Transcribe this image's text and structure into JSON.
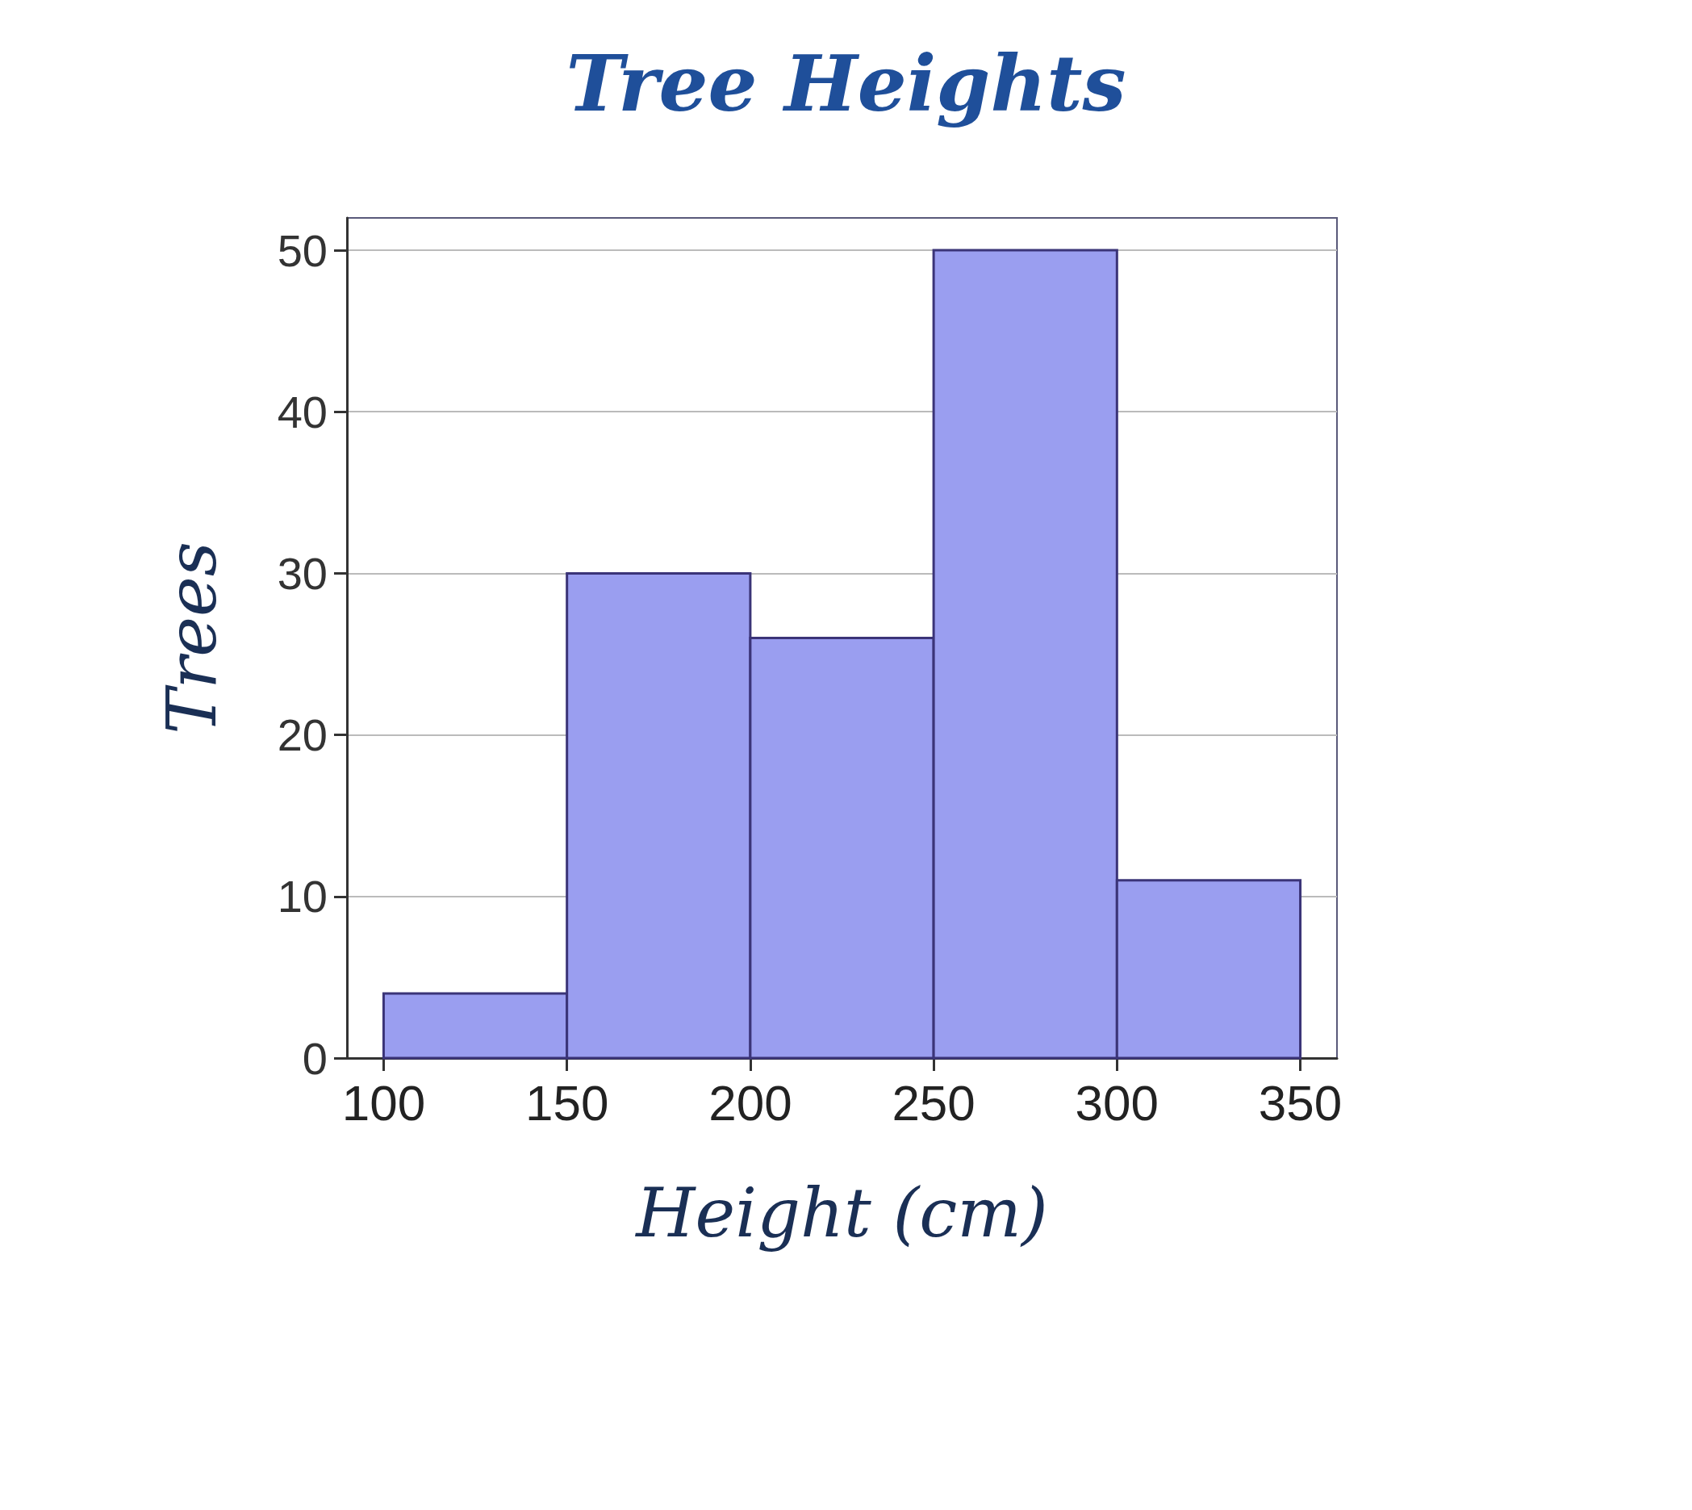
{
  "chart_data": {
    "type": "histogram",
    "title": "Tree Heights",
    "xlabel": "Height (cm)",
    "ylabel": "Trees",
    "bins": [
      100,
      150,
      200,
      250,
      300,
      350
    ],
    "values": [
      4,
      30,
      26,
      50,
      11
    ],
    "color": "#9a9ef0",
    "xlim": [
      90,
      360
    ],
    "xticks": [
      100,
      150,
      200,
      250,
      300,
      350
    ],
    "ylim": [
      0,
      52
    ],
    "yticks": [
      0,
      10,
      20,
      30,
      40,
      50
    ],
    "grid": "y"
  }
}
